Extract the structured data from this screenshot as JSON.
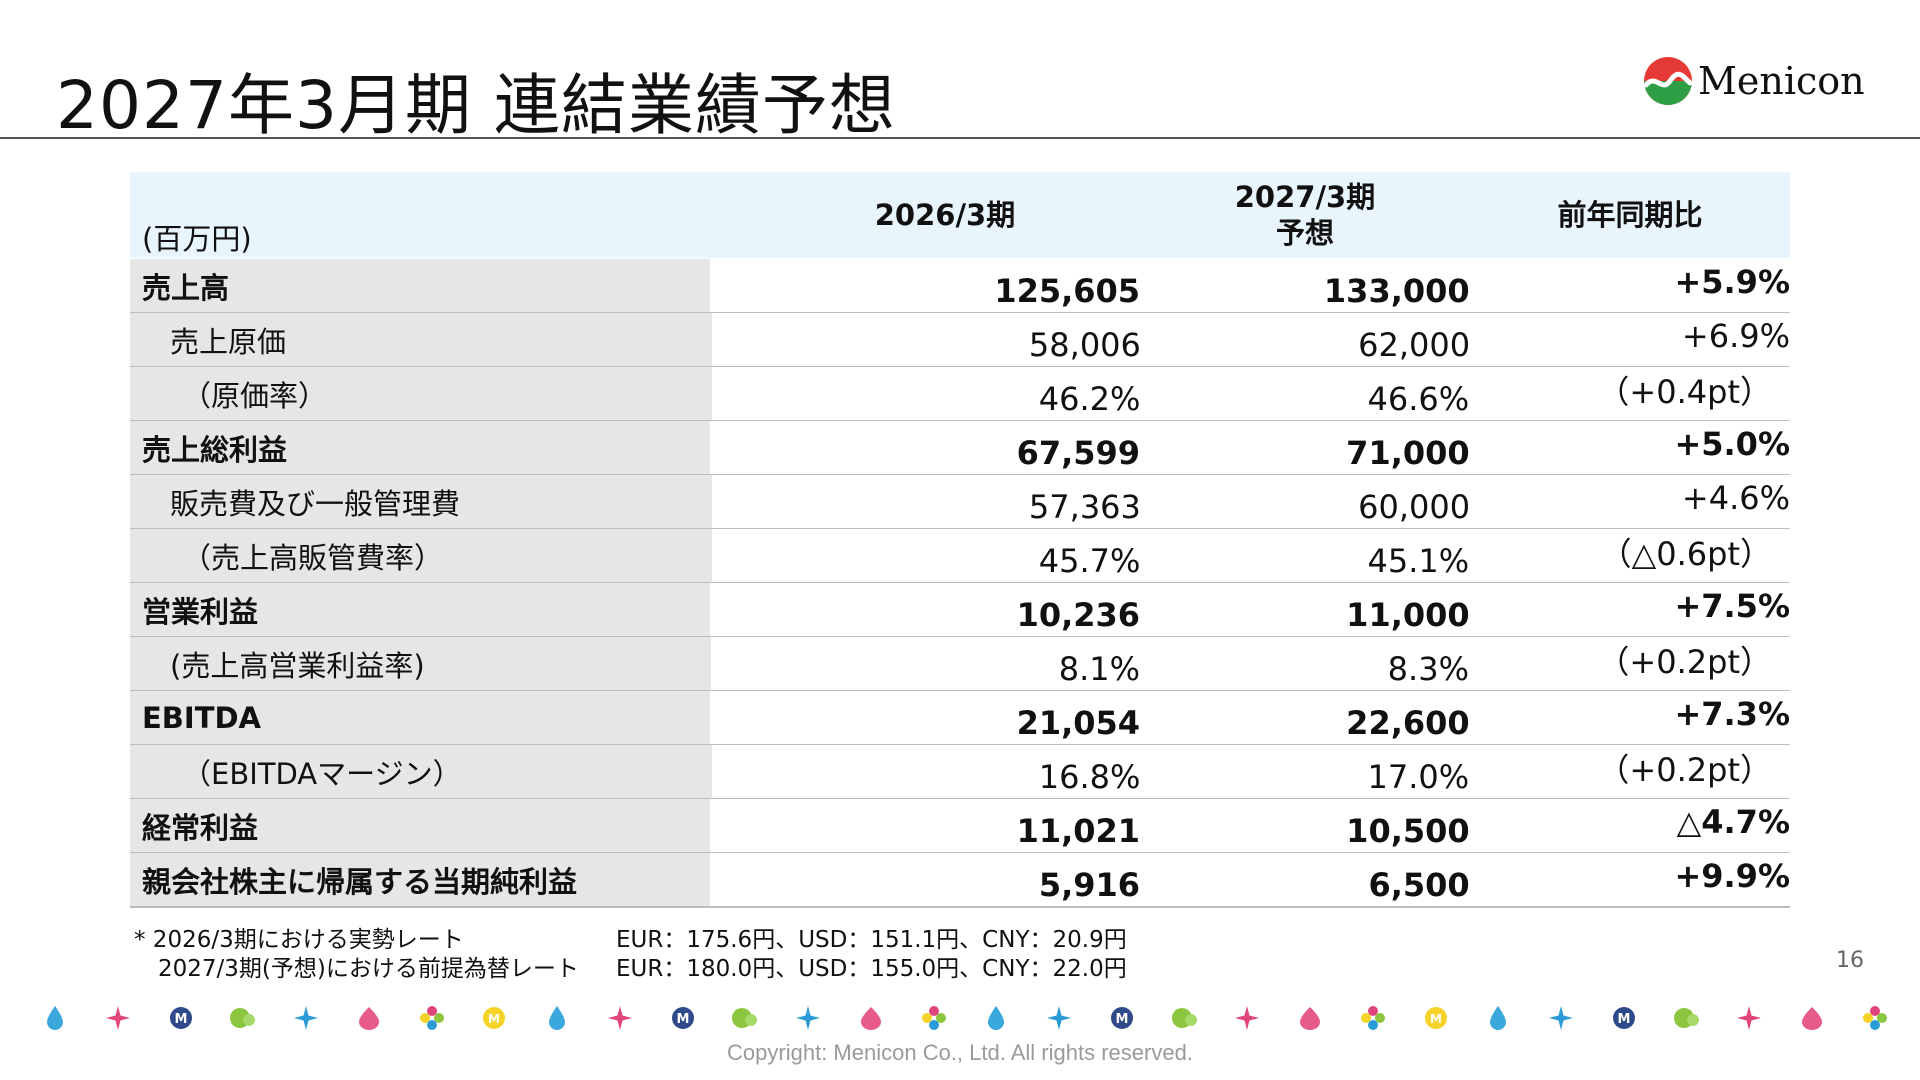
{
  "page": {
    "title": "2027年3月期 連結業績予想",
    "logo_text": "Menicon",
    "page_number": "16",
    "copyright": "Copyright: Menicon Co., Ltd. All rights reserved."
  },
  "table": {
    "unit": "(百万円)",
    "headers": {
      "col1": "2026/3期",
      "col2_line1": "2027/3期",
      "col2_line2": "予想",
      "col3": "前年同期比"
    },
    "rows": [
      {
        "label": "売上高",
        "v1": "125,605",
        "v2": "133,000",
        "v3": "+5.9%"
      },
      {
        "label": "売上原価",
        "v1": "58,006",
        "v2": "62,000",
        "v3": "+6.9%"
      },
      {
        "label": "（原価率）",
        "v1": "46.2%",
        "v2": "46.6%",
        "v3": "（+0.4pt）"
      },
      {
        "label": "売上総利益",
        "v1": "67,599",
        "v2": "71,000",
        "v3": "+5.0%"
      },
      {
        "label": "販売費及び一般管理費",
        "v1": "57,363",
        "v2": "60,000",
        "v3": "+4.6%"
      },
      {
        "label": "（売上高販管費率）",
        "v1": "45.7%",
        "v2": "45.1%",
        "v3": "（△0.6pt）"
      },
      {
        "label": "営業利益",
        "v1": "10,236",
        "v2": "11,000",
        "v3": "+7.5%"
      },
      {
        "label": "(売上高営業利益率)",
        "v1": "8.1%",
        "v2": "8.3%",
        "v3": "（+0.2pt）"
      },
      {
        "label": "EBITDA",
        "v1": "21,054",
        "v2": "22,600",
        "v3": "+7.3%"
      },
      {
        "label": "（EBITDAマージン）",
        "v1": "16.8%",
        "v2": "17.0%",
        "v3": "（+0.2pt）"
      },
      {
        "label": "経常利益",
        "v1": "11,021",
        "v2": "10,500",
        "v3": "△4.7%"
      },
      {
        "label": "親会社株主に帰属する当期純利益",
        "v1": "5,916",
        "v2": "6,500",
        "v3": "+9.9%"
      }
    ]
  },
  "footnote": {
    "line1_label": "* 2026/3期における実勢レート",
    "line1_rates": "EUR：175.6円、USD：151.1円、CNY：20.9円",
    "line2_label": "2027/3期(予想)における前提為替レート",
    "line2_rates": "EUR：180.0円、USD：155.0円、CNY：22.0円"
  },
  "decoration": {
    "icons": [
      "drop-icon",
      "sparkle-icon",
      "m-badge-icon",
      "leaf-icon",
      "sparkle-icon",
      "petal-icon",
      "flower-icon",
      "m-coin-icon",
      "drop-icon",
      "sparkle-icon",
      "m-badge-icon",
      "leaf-icon",
      "sparkle-icon",
      "petal-icon",
      "flower-icon",
      "drop-icon",
      "sparkle-icon",
      "m-badge-icon",
      "leaf-icon",
      "sparkle-icon",
      "petal-icon",
      "flower-icon",
      "m-coin-icon",
      "drop-icon",
      "sparkle-icon",
      "m-badge-icon",
      "leaf-icon",
      "sparkle-icon",
      "petal-icon",
      "flower-icon"
    ],
    "colors": {
      "drop": "#3aa8dc",
      "sparkle-pink": "#e0457b",
      "sparkle-blue": "#2b9bd8",
      "m-badge": "#2f4a8a",
      "leaf": "#8cc63f",
      "petal": "#e75a8c",
      "coin": "#f5d328"
    }
  }
}
